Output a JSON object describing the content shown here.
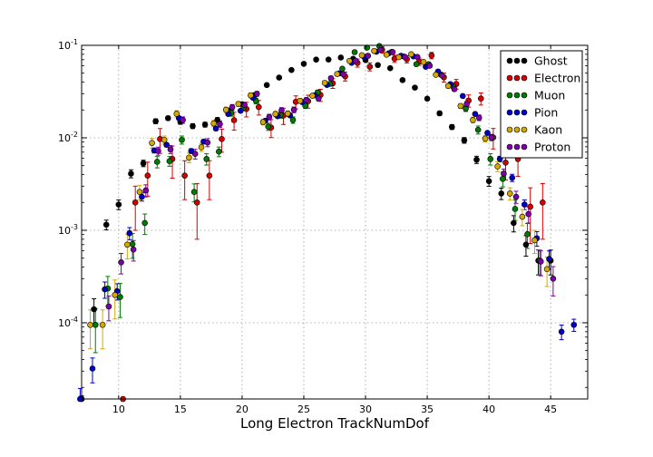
{
  "chart_data": {
    "type": "scatter",
    "title": "",
    "xlabel": "Long Electron TrackNumDof",
    "ylabel": "",
    "xlim": [
      7,
      48
    ],
    "ylim": [
      1.5e-05,
      0.1
    ],
    "yscale": "log",
    "grid": true,
    "legend_position": "top-right",
    "x_ticks": [
      10,
      15,
      20,
      25,
      30,
      35,
      40,
      45
    ],
    "x_tick_labels": [
      "10",
      "15",
      "20",
      "25",
      "30",
      "35",
      "40",
      "45"
    ],
    "y_ticks": [
      0.1,
      0.01,
      0.001,
      0.0001
    ],
    "y_tick_labels": [
      {
        "base": "10",
        "exp": "-1"
      },
      {
        "base": "10",
        "exp": "-2"
      },
      {
        "base": "10",
        "exp": "-3"
      },
      {
        "base": "10",
        "exp": "-4"
      }
    ],
    "series": [
      {
        "name": "Ghost",
        "color": "#000000",
        "x_offset": 0,
        "x": [
          7,
          8,
          9,
          10,
          11,
          12,
          13,
          14,
          15,
          16,
          17,
          18,
          19,
          20,
          21,
          22,
          23,
          24,
          25,
          26,
          27,
          28,
          29,
          30,
          31,
          32,
          33,
          34,
          35,
          36,
          37,
          38,
          39,
          40,
          41,
          42,
          43,
          44,
          45
        ],
        "y": [
          1.5e-05,
          0.00014,
          0.00115,
          0.0019,
          0.0041,
          0.0053,
          0.0151,
          0.0163,
          0.0149,
          0.0134,
          0.0139,
          0.0156,
          0.0197,
          0.0231,
          0.0289,
          0.0372,
          0.0448,
          0.0541,
          0.0631,
          0.0701,
          0.0702,
          0.0738,
          0.0716,
          0.0692,
          0.0612,
          0.0566,
          0.0421,
          0.0349,
          0.0265,
          0.0184,
          0.0131,
          0.0094,
          0.0058,
          0.0034,
          0.0025,
          0.0012,
          0.0007,
          0.00047,
          0.00047
        ],
        "err": [
          0.08,
          0.3,
          0.12,
          0.12,
          0.1,
          0.08,
          0.06,
          0.05,
          0.06,
          0.06,
          0.06,
          0.06,
          0.05,
          0.05,
          0.04,
          0.04,
          0.03,
          0.03,
          0.03,
          0.03,
          0.03,
          0.03,
          0.03,
          0.03,
          0.03,
          0.03,
          0.04,
          0.04,
          0.04,
          0.05,
          0.06,
          0.07,
          0.09,
          0.12,
          0.14,
          0.2,
          0.25,
          0.3,
          0.3
        ]
      },
      {
        "name": "Electron",
        "color": "#d60000",
        "x_offset": 0.35,
        "x": [
          10,
          11,
          12,
          13,
          14,
          15,
          16,
          17,
          18,
          19,
          20,
          21,
          22,
          23,
          24,
          25,
          26,
          27,
          28,
          29,
          30,
          31,
          32,
          33,
          34,
          35,
          36,
          37,
          38,
          39,
          40,
          41,
          42,
          43,
          44
        ],
        "y": [
          1.5e-05,
          0.002,
          0.0039,
          0.0097,
          0.0059,
          0.0039,
          0.002,
          0.0039,
          0.0097,
          0.0155,
          0.0205,
          0.0215,
          0.0129,
          0.0174,
          0.0245,
          0.0249,
          0.0291,
          0.0389,
          0.0462,
          0.0646,
          0.0588,
          0.0895,
          0.0718,
          0.0709,
          0.0668,
          0.0777,
          0.0451,
          0.0382,
          0.0253,
          0.0266,
          0.0101,
          0.0054,
          0.0059,
          0.0018,
          0.002
        ],
        "err": [
          0.0,
          0.5,
          0.4,
          0.3,
          0.38,
          0.45,
          0.6,
          0.45,
          0.28,
          0.22,
          0.18,
          0.18,
          0.22,
          0.2,
          0.16,
          0.16,
          0.15,
          0.12,
          0.11,
          0.1,
          0.1,
          0.08,
          0.09,
          0.09,
          0.09,
          0.08,
          0.11,
          0.12,
          0.15,
          0.15,
          0.25,
          0.35,
          0.35,
          0.6,
          0.6
        ]
      },
      {
        "name": "Muon",
        "color": "#007a00",
        "x_offset": 0.12,
        "x": [
          8,
          9,
          10,
          11,
          12,
          13,
          14,
          15,
          16,
          17,
          18,
          19,
          20,
          21,
          22,
          23,
          24,
          25,
          26,
          27,
          28,
          29,
          30,
          31,
          32,
          33,
          34,
          35,
          36,
          37,
          38,
          39,
          40,
          41,
          42,
          43,
          44
        ],
        "y": [
          9.5e-05,
          0.000235,
          0.00019,
          0.00071,
          0.0012,
          0.0055,
          0.0056,
          0.0095,
          0.0026,
          0.0059,
          0.0071,
          0.0186,
          0.0212,
          0.0251,
          0.0132,
          0.0177,
          0.0156,
          0.0223,
          0.0309,
          0.0383,
          0.0558,
          0.0844,
          0.0943,
          0.0982,
          0.0848,
          0.0755,
          0.0625,
          0.0625,
          0.0482,
          0.0356,
          0.0207,
          0.0122,
          0.0059,
          0.0036,
          0.0017,
          0.00091,
          0.00047
        ],
        "err": [
          0.5,
          0.35,
          0.4,
          0.3,
          0.25,
          0.14,
          0.12,
          0.1,
          0.22,
          0.14,
          0.12,
          0.08,
          0.07,
          0.07,
          0.09,
          0.08,
          0.08,
          0.07,
          0.06,
          0.05,
          0.04,
          0.03,
          0.03,
          0.03,
          0.03,
          0.03,
          0.04,
          0.04,
          0.05,
          0.05,
          0.07,
          0.1,
          0.14,
          0.18,
          0.25,
          0.3,
          0.3
        ]
      },
      {
        "name": "Pion",
        "color": "#0000c8",
        "x_offset": -0.12,
        "x": [
          7,
          8,
          9,
          10,
          11,
          12,
          13,
          14,
          15,
          16,
          17,
          18,
          19,
          20,
          21,
          22,
          23,
          24,
          25,
          26,
          27,
          28,
          29,
          30,
          31,
          32,
          33,
          34,
          35,
          36,
          37,
          38,
          39,
          40,
          41,
          42,
          43,
          44,
          45,
          46,
          47
        ],
        "y": [
          1.5e-05,
          3.2e-05,
          0.00023,
          0.00022,
          0.00093,
          0.0023,
          0.0073,
          0.0084,
          0.0163,
          0.0072,
          0.0091,
          0.0126,
          0.0181,
          0.0196,
          0.0271,
          0.0153,
          0.0171,
          0.0175,
          0.0243,
          0.0288,
          0.0373,
          0.0498,
          0.0647,
          0.0751,
          0.0853,
          0.0819,
          0.0771,
          0.0759,
          0.0586,
          0.0521,
          0.0381,
          0.0283,
          0.0181,
          0.0113,
          0.0059,
          0.0037,
          0.0019,
          0.00082,
          0.00049,
          8e-05,
          9.5e-05
        ],
        "err": [
          0.3,
          0.3,
          0.2,
          0.2,
          0.15,
          0.1,
          0.06,
          0.05,
          0.04,
          0.06,
          0.05,
          0.05,
          0.04,
          0.04,
          0.03,
          0.04,
          0.04,
          0.04,
          0.03,
          0.03,
          0.03,
          0.03,
          0.02,
          0.02,
          0.02,
          0.02,
          0.02,
          0.02,
          0.03,
          0.03,
          0.03,
          0.04,
          0.04,
          0.05,
          0.07,
          0.09,
          0.12,
          0.18,
          0.22,
          0.18,
          0.15
        ]
      },
      {
        "name": "Kaon",
        "color": "#d4a800",
        "x_offset": -0.3,
        "x": [
          8,
          9,
          10,
          11,
          12,
          13,
          14,
          15,
          16,
          17,
          18,
          19,
          20,
          21,
          22,
          23,
          24,
          25,
          26,
          27,
          28,
          29,
          30,
          31,
          32,
          33,
          34,
          35,
          36,
          37,
          38,
          39,
          40,
          41,
          42,
          43,
          44,
          45
        ],
        "y": [
          9.5e-05,
          9.5e-05,
          0.0002,
          0.0007,
          0.0026,
          0.0088,
          0.0095,
          0.0182,
          0.0061,
          0.0079,
          0.0143,
          0.0201,
          0.0232,
          0.0288,
          0.0148,
          0.0181,
          0.0183,
          0.0251,
          0.0285,
          0.0393,
          0.0489,
          0.0678,
          0.0781,
          0.0871,
          0.0792,
          0.0745,
          0.0801,
          0.0661,
          0.0481,
          0.0364,
          0.0221,
          0.0156,
          0.0098,
          0.0049,
          0.0025,
          0.0014,
          0.00078,
          0.00038
        ],
        "err": [
          0.45,
          0.45,
          0.45,
          0.3,
          0.18,
          0.12,
          0.1,
          0.08,
          0.12,
          0.1,
          0.08,
          0.07,
          0.06,
          0.06,
          0.07,
          0.07,
          0.07,
          0.06,
          0.05,
          0.05,
          0.04,
          0.04,
          0.03,
          0.03,
          0.03,
          0.03,
          0.03,
          0.04,
          0.04,
          0.05,
          0.06,
          0.07,
          0.08,
          0.12,
          0.15,
          0.2,
          0.28,
          0.35
        ]
      },
      {
        "name": "Proton",
        "color": "#7d00a8",
        "x_offset": 0.2,
        "x": [
          9,
          10,
          11,
          12,
          13,
          14,
          15,
          16,
          17,
          18,
          19,
          20,
          21,
          22,
          23,
          24,
          25,
          26,
          27,
          28,
          29,
          30,
          31,
          32,
          33,
          34,
          35,
          36,
          37,
          38,
          39,
          40,
          41,
          42,
          43,
          44,
          45
        ],
        "y": [
          0.00015,
          0.00045,
          0.00062,
          0.0027,
          0.0072,
          0.0075,
          0.0156,
          0.0067,
          0.0089,
          0.0141,
          0.0214,
          0.0226,
          0.0299,
          0.0168,
          0.0198,
          0.0201,
          0.0256,
          0.0266,
          0.0441,
          0.0488,
          0.0682,
          0.0771,
          0.0895,
          0.0845,
          0.0749,
          0.0749,
          0.0601,
          0.0473,
          0.0336,
          0.0232,
          0.0165,
          0.0101,
          0.0041,
          0.0023,
          0.0015,
          0.00046,
          0.0003
        ],
        "err": [
          0.3,
          0.25,
          0.25,
          0.15,
          0.1,
          0.1,
          0.08,
          0.12,
          0.1,
          0.08,
          0.07,
          0.07,
          0.06,
          0.07,
          0.07,
          0.07,
          0.06,
          0.06,
          0.05,
          0.04,
          0.04,
          0.04,
          0.03,
          0.03,
          0.03,
          0.03,
          0.04,
          0.04,
          0.05,
          0.06,
          0.07,
          0.08,
          0.12,
          0.15,
          0.2,
          0.3,
          0.35
        ]
      }
    ]
  }
}
